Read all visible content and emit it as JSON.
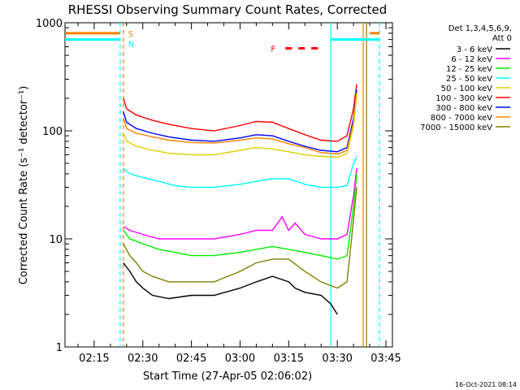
{
  "chart_data": {
    "type": "line",
    "title": "RHESSI Observing Summary Count Rates, Corrected",
    "xlabel": "Start Time (27-Apr-05 02:06:02)",
    "ylabel": "Corrected Count Rate (s⁻¹ detector⁻¹)",
    "x_ticks": [
      "02:15",
      "02:30",
      "02:45",
      "03:00",
      "03:15",
      "03:30",
      "03:45"
    ],
    "x_range": [
      "02:06",
      "03:47"
    ],
    "y_scale": "log",
    "ylim": [
      1,
      1000
    ],
    "y_ticks": [
      "1",
      "10",
      "100",
      "1000"
    ],
    "timestamp": "16-Oct-2021 08:14",
    "legend": {
      "position": "right",
      "header_lines": [
        "Det 1,3,4,5,6,9,",
        "Att 0"
      ],
      "entries": [
        {
          "label": "3 - 6 keV",
          "color": "#000000"
        },
        {
          "label": "6 - 12 keV",
          "color": "#ff00ff"
        },
        {
          "label": "12 - 25 keV",
          "color": "#00ee00"
        },
        {
          "label": "25 - 50 keV",
          "color": "#00ffff"
        },
        {
          "label": "50 - 100 keV",
          "color": "#e0d000"
        },
        {
          "label": "100 - 300 keV",
          "color": "#ff0000"
        },
        {
          "label": "300 - 800 keV",
          "color": "#0000ff"
        },
        {
          "label": "800 - 7000 keV",
          "color": "#ff8000"
        },
        {
          "label": "7000 - 15000 keV",
          "color": "#808000"
        }
      ]
    },
    "flags": [
      {
        "label": "S",
        "color": "#ff8000"
      },
      {
        "label": "N",
        "color": "#00ffff"
      },
      {
        "label": "F",
        "color": "#ff0000"
      }
    ],
    "series": [
      {
        "legend_label": "100 - 300 keV",
        "color": "#ff0000",
        "x": [
          "02:24",
          "02:25",
          "02:28",
          "02:33",
          "02:38",
          "02:45",
          "02:52",
          "03:00",
          "03:05",
          "03:10",
          "03:15",
          "03:20",
          "03:25",
          "03:30",
          "03:33",
          "03:35",
          "03:36"
        ],
        "y": [
          200,
          160,
          140,
          125,
          115,
          105,
          100,
          112,
          122,
          120,
          105,
          92,
          82,
          80,
          90,
          160,
          270
        ]
      },
      {
        "legend_label": "300 - 800 keV",
        "color": "#0000ff",
        "x": [
          "02:24",
          "02:25",
          "02:28",
          "02:33",
          "02:38",
          "02:45",
          "02:52",
          "03:00",
          "03:05",
          "03:10",
          "03:15",
          "03:20",
          "03:25",
          "03:30",
          "03:33",
          "03:35",
          "03:36"
        ],
        "y": [
          150,
          120,
          105,
          95,
          88,
          82,
          80,
          86,
          92,
          90,
          80,
          72,
          66,
          64,
          70,
          130,
          240
        ]
      },
      {
        "legend_label": "800 - 7000 keV",
        "color": "#ff8000",
        "x": [
          "02:24",
          "02:25",
          "02:28",
          "02:33",
          "02:38",
          "02:45",
          "02:52",
          "03:00",
          "03:05",
          "03:10",
          "03:15",
          "03:20",
          "03:25",
          "03:30",
          "03:33",
          "03:35",
          "03:36"
        ],
        "y": [
          130,
          105,
          95,
          88,
          82,
          78,
          77,
          82,
          86,
          84,
          76,
          70,
          63,
          61,
          66,
          120,
          230
        ]
      },
      {
        "legend_label": "50 - 100 keV",
        "color": "#e0d000",
        "x": [
          "02:24",
          "02:25",
          "02:28",
          "02:33",
          "02:38",
          "02:45",
          "02:52",
          "03:00",
          "03:05",
          "03:10",
          "03:15",
          "03:20",
          "03:25",
          "03:30",
          "03:33",
          "03:35",
          "03:36"
        ],
        "y": [
          95,
          80,
          72,
          66,
          62,
          60,
          60,
          66,
          70,
          68,
          64,
          60,
          58,
          57,
          62,
          110,
          220
        ]
      },
      {
        "legend_label": "25 - 50 keV",
        "color": "#00ffff",
        "x": [
          "02:24",
          "02:26",
          "02:30",
          "02:35",
          "02:40",
          "02:45",
          "02:52",
          "03:00",
          "03:05",
          "03:10",
          "03:15",
          "03:20",
          "03:25",
          "03:30",
          "03:33",
          "03:35",
          "03:36"
        ],
        "y": [
          45,
          40,
          37,
          34,
          31,
          30,
          30,
          32,
          34,
          36,
          36,
          32,
          30,
          30,
          31,
          50,
          58
        ]
      },
      {
        "legend_label": "6 - 12 keV",
        "color": "#ff00ff",
        "x": [
          "02:24",
          "02:26",
          "02:30",
          "02:35",
          "02:40",
          "02:45",
          "02:52",
          "03:00",
          "03:05",
          "03:10",
          "03:13",
          "03:15",
          "03:17",
          "03:20",
          "03:25",
          "03:30",
          "03:33",
          "03:35",
          "03:36"
        ],
        "y": [
          13,
          12,
          11,
          10,
          10,
          10,
          10,
          11,
          12,
          12,
          16,
          12,
          14,
          11,
          10,
          10,
          11,
          25,
          45
        ]
      },
      {
        "legend_label": "12 - 25 keV",
        "color": "#00ee00",
        "x": [
          "02:24",
          "02:26",
          "02:30",
          "02:35",
          "02:40",
          "02:45",
          "02:52",
          "03:00",
          "03:05",
          "03:10",
          "03:15",
          "03:20",
          "03:25",
          "03:30",
          "03:33",
          "03:35",
          "03:36"
        ],
        "y": [
          12,
          10,
          9,
          8,
          7.5,
          7,
          7,
          7.5,
          8,
          8.5,
          8,
          7.5,
          7,
          6.5,
          7,
          20,
          40
        ]
      },
      {
        "legend_label": "7000 - 15000 keV",
        "color": "#808000",
        "x": [
          "02:24",
          "02:26",
          "02:28",
          "02:30",
          "02:33",
          "02:38",
          "02:45",
          "02:52",
          "03:00",
          "03:05",
          "03:10",
          "03:15",
          "03:20",
          "03:25",
          "03:30",
          "03:33",
          "03:35",
          "03:36"
        ],
        "y": [
          9,
          7,
          6,
          5,
          4.5,
          4,
          4,
          4,
          5,
          6,
          6.5,
          6.5,
          5,
          4,
          3.5,
          4,
          15,
          30
        ]
      },
      {
        "legend_label": "3 - 6 keV",
        "color": "#000000",
        "x": [
          "02:24",
          "02:26",
          "02:28",
          "02:30",
          "02:33",
          "02:38",
          "02:45",
          "02:52",
          "03:00",
          "03:05",
          "03:10",
          "03:15",
          "03:17",
          "03:20",
          "03:25",
          "03:28",
          "03:30"
        ],
        "y": [
          6,
          5,
          4,
          3.5,
          3,
          2.8,
          3,
          3,
          3.5,
          4,
          4.5,
          4,
          3.5,
          3.2,
          3,
          2.5,
          2
        ]
      }
    ],
    "attenuator_bar": {
      "value": 700,
      "color": "#00ffff",
      "segments": [
        [
          "02:06",
          "02:23"
        ],
        [
          "03:28",
          "03:43"
        ]
      ]
    },
    "saa_bar": {
      "value": 800,
      "color": "#ff8000",
      "segments": [
        [
          "02:06",
          "02:23"
        ],
        [
          "03:40",
          "03:43"
        ]
      ]
    },
    "flare_marks": {
      "value": 580,
      "color": "#ff0000",
      "segments": [
        [
          "03:14",
          "03:16"
        ],
        [
          "03:18",
          "03:20"
        ],
        [
          "03:22",
          "03:24"
        ]
      ]
    },
    "vertical_markers": [
      {
        "x": "02:23",
        "color": "#00ffff"
      },
      {
        "x": "02:24",
        "color": "#ff8000"
      },
      {
        "x": "03:43",
        "color": "#00ffff"
      }
    ],
    "vertical_solid": [
      {
        "x": "03:28",
        "color": "#00ffff"
      },
      {
        "x": "03:38",
        "color": "#ff8000"
      },
      {
        "x": "03:39",
        "color": "#808000"
      }
    ],
    "grid": false
  }
}
